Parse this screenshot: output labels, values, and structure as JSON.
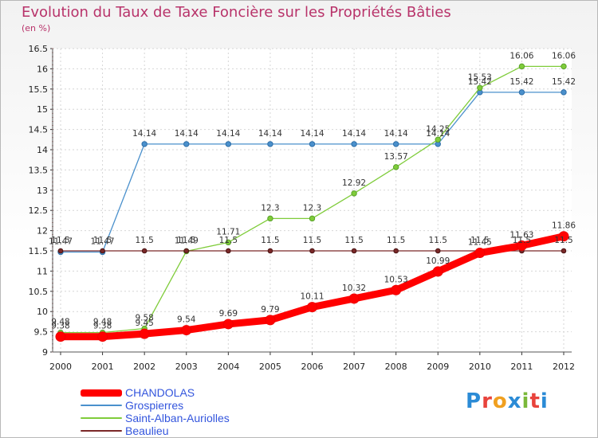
{
  "chart_data": {
    "type": "line",
    "title": "Evolution du Taux de Taxe Foncière sur les Propriétés Bâties",
    "ylabel": "(en %)",
    "xlabel": "",
    "ylim": [
      9,
      16.5
    ],
    "yticks": [
      "9",
      "9.5",
      "10",
      "10.5",
      "11",
      "11.5",
      "12",
      "12.5",
      "13",
      "13.5",
      "14",
      "14.5",
      "15",
      "15.5",
      "16",
      "16.5"
    ],
    "x": [
      "2000",
      "2001",
      "2002",
      "2003",
      "2004",
      "2005",
      "2006",
      "2007",
      "2008",
      "2009",
      "2010",
      "2011",
      "2012"
    ],
    "series": [
      {
        "name": "CHANDOLAS",
        "color": "#ff0000",
        "values": [
          9.38,
          9.38,
          9.45,
          9.54,
          9.69,
          9.79,
          10.11,
          10.32,
          10.53,
          10.99,
          11.45,
          11.63,
          11.86
        ]
      },
      {
        "name": "Grospierres",
        "color": "#4a90cc",
        "values": [
          11.47,
          11.47,
          14.14,
          14.14,
          14.14,
          14.14,
          14.14,
          14.14,
          14.14,
          14.14,
          15.42,
          15.42,
          15.42
        ]
      },
      {
        "name": "Saint-Alban-Auriolles",
        "color": "#7fcc3a",
        "values": [
          9.48,
          9.48,
          9.58,
          11.49,
          11.71,
          12.3,
          12.3,
          12.92,
          13.57,
          14.25,
          15.53,
          16.06,
          16.06
        ]
      },
      {
        "name": "Beaulieu",
        "color": "#7a2828",
        "values": [
          11.5,
          11.5,
          11.5,
          11.5,
          11.5,
          11.5,
          11.5,
          11.5,
          11.5,
          11.5,
          11.5,
          11.5,
          11.5
        ]
      }
    ]
  },
  "logo": {
    "text": "Proxiti",
    "colors": [
      "#2b8bd6",
      "#e8433c",
      "#f0a020",
      "#2b8bd6",
      "#7ab83a",
      "#e8433c",
      "#2b8bd6"
    ]
  }
}
